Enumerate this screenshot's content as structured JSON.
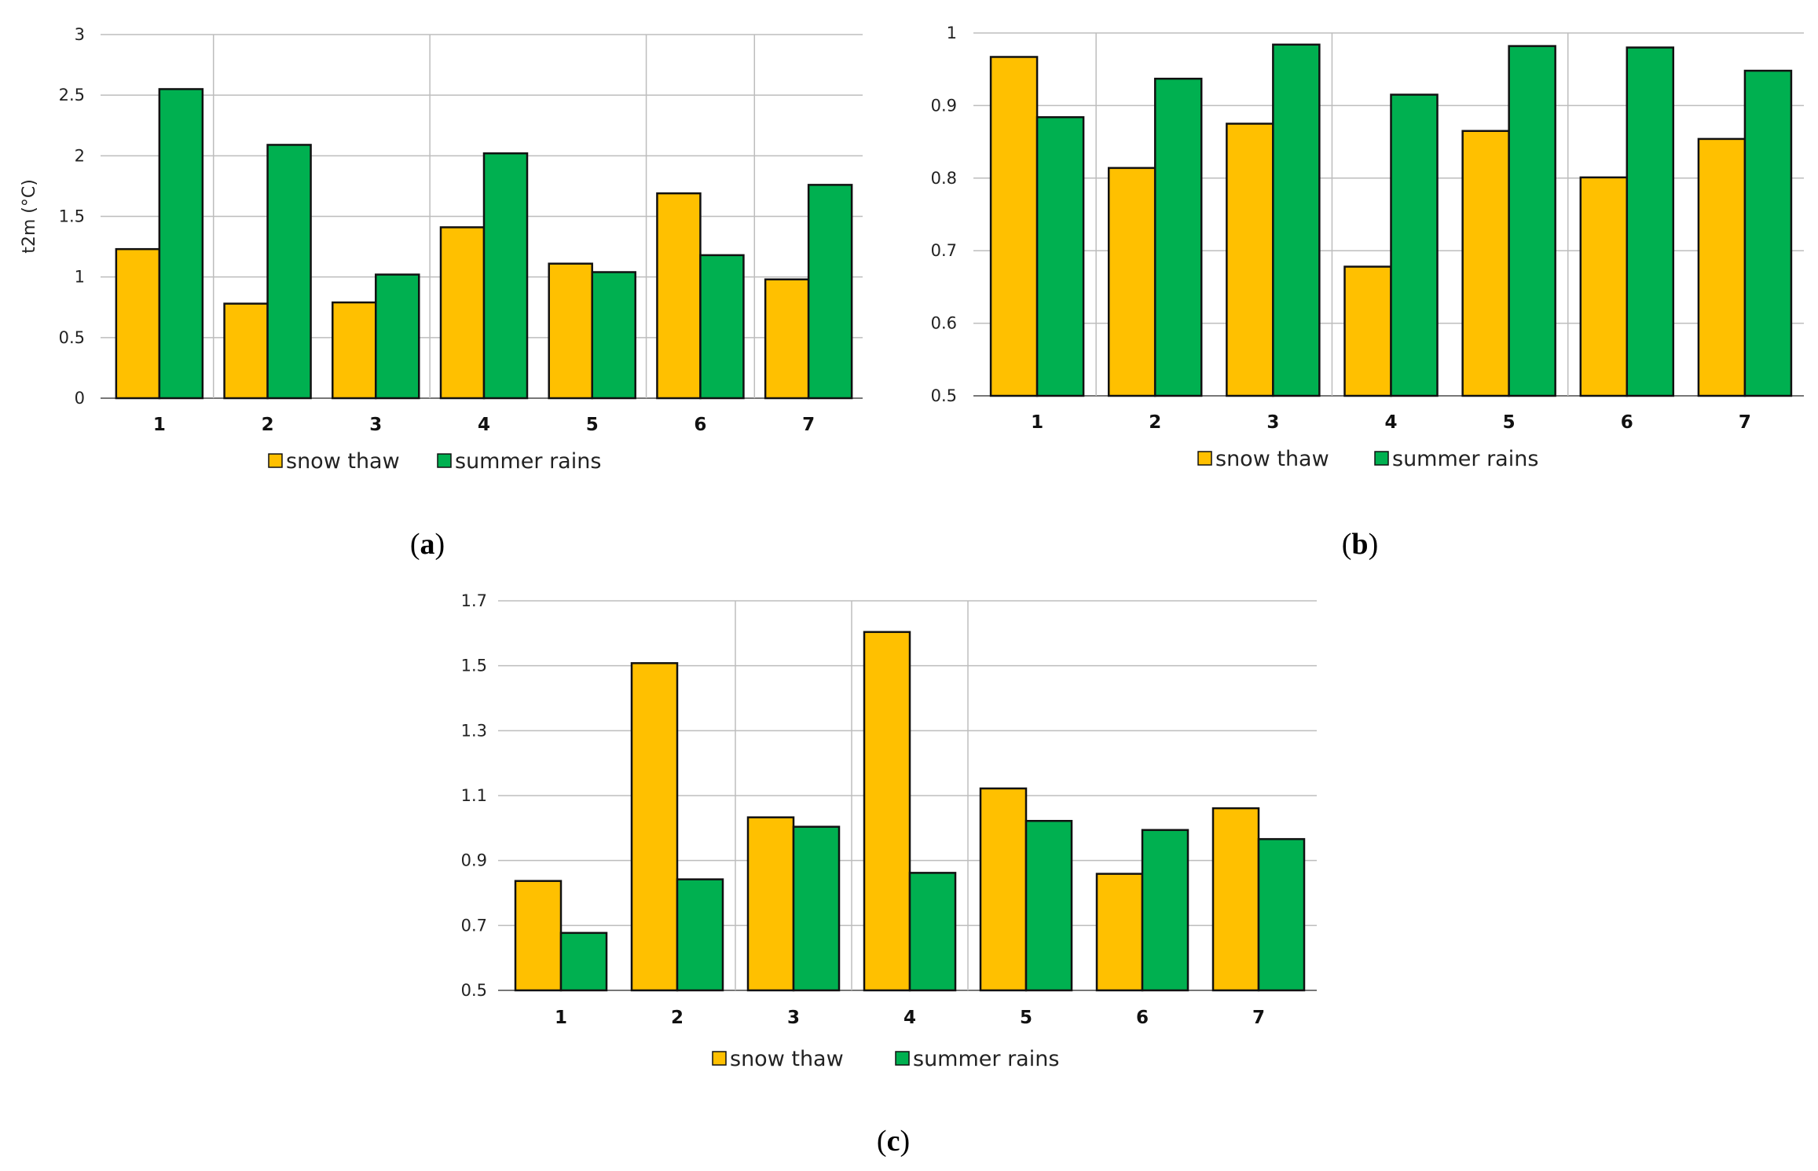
{
  "chart_data": [
    {
      "type": "bar",
      "panel": "a",
      "caption_letter": "a",
      "ylabel": "t2m (°C)",
      "xlabel": "",
      "categories": [
        "1",
        "2",
        "3",
        "4",
        "5",
        "6",
        "7"
      ],
      "ylim": [
        0,
        3
      ],
      "yticks": [
        "0",
        "0.5",
        "1",
        "1.5",
        "2",
        "2.5",
        "3"
      ],
      "ytick_values": [
        0,
        0.5,
        1,
        1.5,
        2,
        2.5,
        3
      ],
      "series": [
        {
          "name": "snow thaw",
          "color": "#FFC000",
          "values": [
            1.23,
            0.78,
            0.79,
            1.41,
            1.11,
            1.69,
            0.98
          ]
        },
        {
          "name": "summer rains",
          "color": "#00B050",
          "values": [
            2.55,
            2.09,
            1.02,
            2.02,
            1.04,
            1.18,
            1.76
          ]
        }
      ]
    },
    {
      "type": "bar",
      "panel": "b",
      "caption_letter": "b",
      "ylabel": "",
      "xlabel": "",
      "categories": [
        "1",
        "2",
        "3",
        "4",
        "5",
        "6",
        "7"
      ],
      "ylim": [
        0.5,
        1
      ],
      "yticks": [
        "0.5",
        "0.6",
        "0.7",
        "0.8",
        "0.9",
        "1"
      ],
      "ytick_values": [
        0.5,
        0.6,
        0.7,
        0.8,
        0.9,
        1.0
      ],
      "series": [
        {
          "name": "snow thaw",
          "color": "#FFC000",
          "values": [
            0.967,
            0.814,
            0.875,
            0.678,
            0.865,
            0.801,
            0.854
          ]
        },
        {
          "name": "summer rains",
          "color": "#00B050",
          "values": [
            0.884,
            0.937,
            0.984,
            0.915,
            0.982,
            0.98,
            0.948
          ]
        }
      ]
    },
    {
      "type": "bar",
      "panel": "c",
      "caption_letter": "c",
      "ylabel": "",
      "xlabel": "",
      "categories": [
        "1",
        "2",
        "3",
        "4",
        "5",
        "6",
        "7"
      ],
      "ylim": [
        0.5,
        1.7
      ],
      "yticks": [
        "0.5",
        "0.7",
        "0.9",
        "1.1",
        "1.3",
        "1.5",
        "1.7"
      ],
      "ytick_values": [
        0.5,
        0.7,
        0.9,
        1.1,
        1.3,
        1.5,
        1.7
      ],
      "series": [
        {
          "name": "snow thaw",
          "color": "#FFC000",
          "values": [
            0.837,
            1.508,
            1.033,
            1.604,
            1.122,
            0.859,
            1.061
          ]
        },
        {
          "name": "summer rains",
          "color": "#00B050",
          "values": [
            0.677,
            0.842,
            1.004,
            0.862,
            1.022,
            0.994,
            0.966
          ]
        }
      ]
    }
  ]
}
